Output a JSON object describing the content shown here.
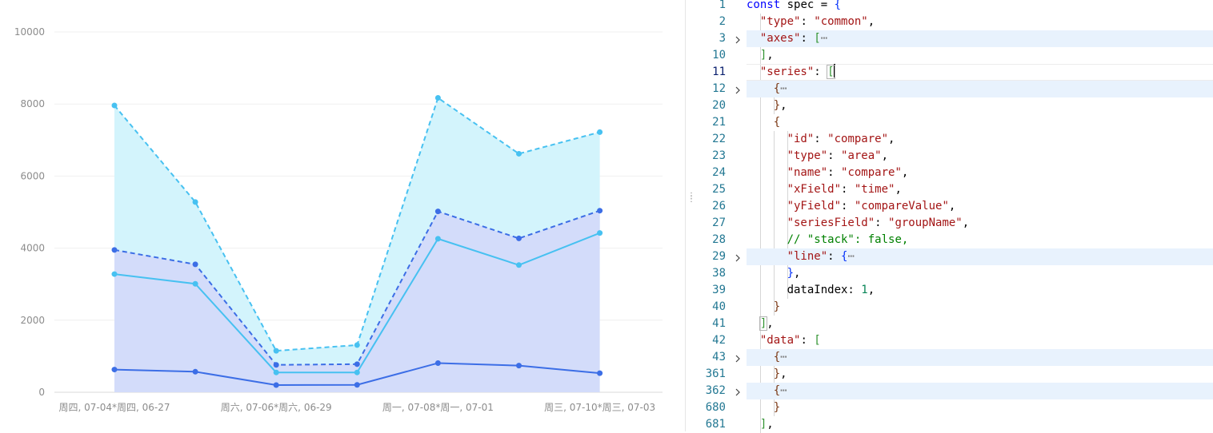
{
  "chart": {
    "y_ticks": [
      "10000",
      "8000",
      "6000",
      "4000",
      "2000",
      "0"
    ],
    "x_labels": [
      "周四, 07-04*周四, 06-27",
      "周六, 07-06*周六, 06-29",
      "周一, 07-08*周一, 07-01",
      "周三, 07-10*周三, 07-03"
    ]
  },
  "chart_data": {
    "type": "area",
    "x": [
      "周四, 07-04*周四, 06-27",
      "",
      "周六, 07-06*周六, 06-29",
      "",
      "周一, 07-08*周一, 07-01",
      "",
      "周三, 07-10*周三, 07-03"
    ],
    "ylim": [
      0,
      10000
    ],
    "grid": true,
    "series": [
      {
        "values": [
          630,
          570,
          200,
          205,
          810,
          740,
          530
        ],
        "color": "#3c6ee6",
        "style": "solid"
      },
      {
        "values": [
          3950,
          3550,
          760,
          780,
          5020,
          4270,
          5040
        ],
        "color": "#3c6ee6",
        "style": "dashed"
      },
      {
        "values": [
          3280,
          3010,
          550,
          550,
          4260,
          3530,
          4420
        ],
        "color": "#47c1f1",
        "style": "solid"
      },
      {
        "values": [
          7960,
          5280,
          1150,
          1310,
          8170,
          6620,
          7220
        ],
        "color": "#47c1f1",
        "style": "dashed"
      }
    ],
    "fills": {
      "blue_band": "#d3dcfa",
      "cyan_band": "#d3f4fc"
    }
  },
  "editor": {
    "lines": [
      {
        "n": "1",
        "html": "<span class='k'>const</span> spec = <span class='b1'>{</span>"
      },
      {
        "n": "2",
        "html": "  <span class='s'>\"type\"</span>: <span class='s'>\"common\"</span>,"
      },
      {
        "n": "3",
        "html": "  <span class='s'>\"axes\"</span>: <span class='b2'>[</span><span class='ell'>⋯</span>",
        "fold": true,
        "hl": true
      },
      {
        "n": "10",
        "html": "  <span class='b2'>]</span>,"
      },
      {
        "n": "11",
        "html": "  <span class='s'>\"series\"</span>: <span class='b2 match'>[</span><span class='cursor'></span>",
        "cur": true
      },
      {
        "n": "12",
        "html": "    <span class='b3'>{</span><span class='ell'>⋯</span>",
        "fold": true,
        "hl": true
      },
      {
        "n": "20",
        "html": "    <span class='b3'>}</span>,"
      },
      {
        "n": "21",
        "html": "    <span class='b3'>{</span>"
      },
      {
        "n": "22",
        "html": "      <span class='s'>\"id\"</span>: <span class='s'>\"compare\"</span>,"
      },
      {
        "n": "23",
        "html": "      <span class='s'>\"type\"</span>: <span class='s'>\"area\"</span>,"
      },
      {
        "n": "24",
        "html": "      <span class='s'>\"name\"</span>: <span class='s'>\"compare\"</span>,"
      },
      {
        "n": "25",
        "html": "      <span class='s'>\"xField\"</span>: <span class='s'>\"time\"</span>,"
      },
      {
        "n": "26",
        "html": "      <span class='s'>\"yField\"</span>: <span class='s'>\"compareValue\"</span>,"
      },
      {
        "n": "27",
        "html": "      <span class='s'>\"seriesField\"</span>: <span class='s'>\"groupName\"</span>,"
      },
      {
        "n": "28",
        "html": "      <span class='c'>// \"stack\": false,</span>"
      },
      {
        "n": "29",
        "html": "      <span class='s'>\"line\"</span>: <span class='b1'>{</span><span class='ell'>⋯</span>",
        "fold": true,
        "hl": true
      },
      {
        "n": "38",
        "html": "      <span class='b1'>}</span>,"
      },
      {
        "n": "39",
        "html": "      dataIndex: <span class='n'>1</span>,"
      },
      {
        "n": "40",
        "html": "    <span class='b3'>}</span>"
      },
      {
        "n": "41",
        "html": "  <span class='b2 match'>]</span>,"
      },
      {
        "n": "42",
        "html": "  <span class='s'>\"data\"</span>: <span class='b2'>[</span>"
      },
      {
        "n": "43",
        "html": "    <span class='b3'>{</span><span class='ell'>⋯</span>",
        "fold": true,
        "hl": true
      },
      {
        "n": "361",
        "html": "    <span class='b3'>}</span>,"
      },
      {
        "n": "362",
        "html": "    <span class='b3'>{</span><span class='ell'>⋯</span>",
        "fold": true,
        "hl": true
      },
      {
        "n": "680",
        "html": "    <span class='b3'>}</span>"
      },
      {
        "n": "681",
        "html": "  <span class='b2'>]</span>,"
      }
    ]
  }
}
